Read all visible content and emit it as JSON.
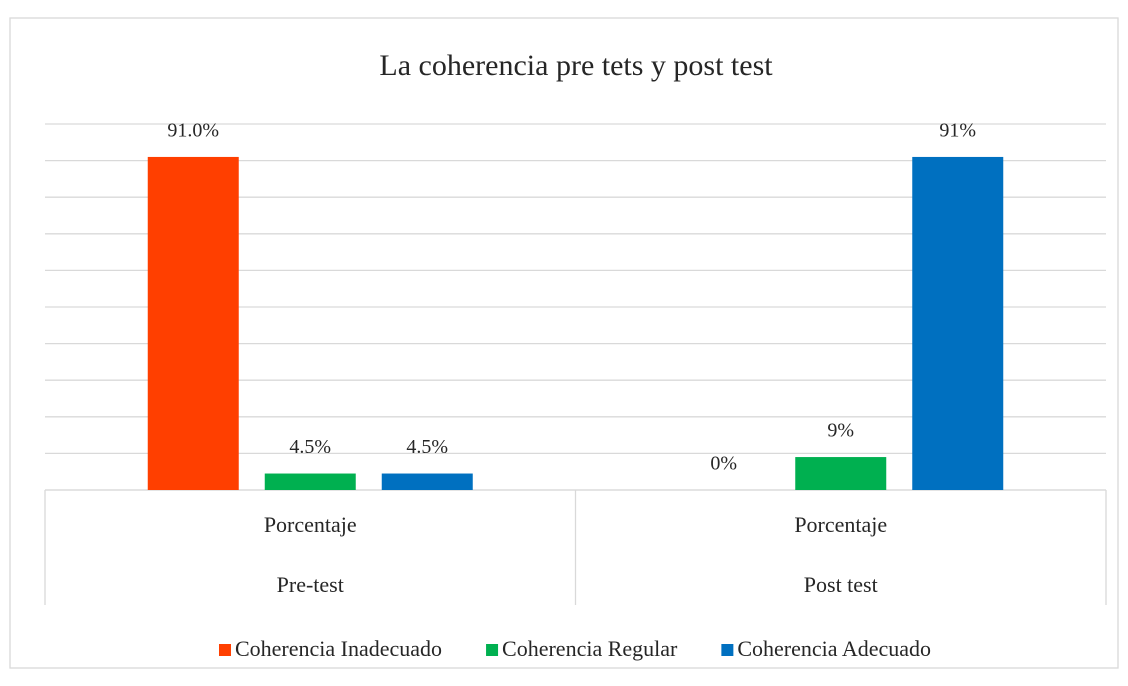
{
  "chart_data": {
    "type": "bar",
    "title": "La coherencia pre tets y post test",
    "categories": [
      [
        "Porcentaje",
        "Pre-test"
      ],
      [
        "Porcentaje",
        "Post test"
      ]
    ],
    "series": [
      {
        "name": "Coherencia Inadecuado",
        "color": "#ff3f00",
        "values": [
          91,
          0
        ],
        "value_labels": [
          "91.0%",
          "0%"
        ]
      },
      {
        "name": "Coherencia Regular",
        "color": "#00b050",
        "values": [
          4.5,
          9
        ],
        "value_labels": [
          "4.5%",
          "9%"
        ]
      },
      {
        "name": "Coherencia Adecuado",
        "color": "#0070c0",
        "values": [
          4.5,
          91
        ],
        "value_labels": [
          "4.5%",
          "91%"
        ]
      }
    ],
    "ylim": [
      0,
      100
    ],
    "yticks": [
      0,
      10,
      20,
      30,
      40,
      50,
      60,
      70,
      80,
      90,
      100
    ],
    "grid": true,
    "legend": "bottom"
  }
}
